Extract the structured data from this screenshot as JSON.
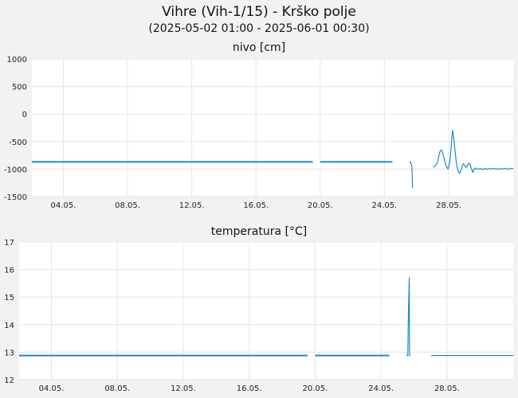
{
  "header": {
    "title": "Vihre (Vih-1/15) - Krško polje",
    "subtitle": "(2025-05-02 01:00 - 2025-06-01 00:30)"
  },
  "colors": {
    "line": "#1f88c9",
    "grid": "#e6e6e6",
    "background": "#f2f2f2",
    "plot_bg": "#ffffff"
  },
  "chart_data": [
    {
      "type": "line",
      "title": "nivo [cm]",
      "xlim": [
        "2025-05-02 01:00",
        "2025-06-01 00:30"
      ],
      "ylim": [
        -1500,
        1000
      ],
      "y_ticks": [
        1000,
        500,
        0,
        -500,
        -1000,
        -1500
      ],
      "x_ticks": [
        "04.05.",
        "08.05.",
        "12.05.",
        "16.05.",
        "20.05.",
        "24.05.",
        "28.05."
      ],
      "x_tick_dates": [
        "2025-05-04",
        "2025-05-08",
        "2025-05-12",
        "2025-05-16",
        "2025-05-20",
        "2025-05-24",
        "2025-05-28"
      ],
      "grid": true,
      "segments": [
        [
          [
            "2025-05-02 01:00",
            -870
          ],
          [
            "2025-05-19 13:00",
            -870
          ]
        ],
        [
          [
            "2025-05-20 00:00",
            -870
          ],
          [
            "2025-05-24 12:00",
            -870
          ]
        ],
        [
          [
            "2025-05-25 13:00",
            -870
          ],
          [
            "2025-05-25 15:00",
            -870
          ],
          [
            "2025-05-25 17:00",
            -950
          ],
          [
            "2025-05-25 17:30",
            -1080
          ],
          [
            "2025-05-25 18:00",
            -1340
          ]
        ],
        [
          [
            "2025-05-27 01:00",
            -970
          ],
          [
            "2025-05-27 04:00",
            -940
          ],
          [
            "2025-05-27 07:00",
            -890
          ],
          [
            "2025-05-27 09:00",
            -780
          ],
          [
            "2025-05-27 11:00",
            -680
          ],
          [
            "2025-05-27 13:00",
            -650
          ],
          [
            "2025-05-27 15:00",
            -700
          ],
          [
            "2025-05-27 17:00",
            -790
          ],
          [
            "2025-05-27 19:00",
            -900
          ],
          [
            "2025-05-27 21:00",
            -960
          ],
          [
            "2025-05-27 23:00",
            -1000
          ],
          [
            "2025-05-28 00:00",
            -960
          ],
          [
            "2025-05-28 01:00",
            -920
          ],
          [
            "2025-05-28 02:00",
            -820
          ],
          [
            "2025-05-28 03:00",
            -700
          ],
          [
            "2025-05-28 04:00",
            -560
          ],
          [
            "2025-05-28 05:00",
            -400
          ],
          [
            "2025-05-28 06:00",
            -300
          ],
          [
            "2025-05-28 07:00",
            -380
          ],
          [
            "2025-05-28 08:00",
            -480
          ],
          [
            "2025-05-28 09:00",
            -600
          ],
          [
            "2025-05-28 10:00",
            -720
          ],
          [
            "2025-05-28 11:00",
            -830
          ],
          [
            "2025-05-28 12:00",
            -930
          ],
          [
            "2025-05-28 14:00",
            -1020
          ],
          [
            "2025-05-28 16:00",
            -1080
          ],
          [
            "2025-05-28 18:00",
            -1040
          ],
          [
            "2025-05-28 20:00",
            -950
          ],
          [
            "2025-05-28 22:00",
            -900
          ],
          [
            "2025-05-29 00:00",
            -930
          ],
          [
            "2025-05-29 02:00",
            -970
          ],
          [
            "2025-05-29 04:00",
            -940
          ],
          [
            "2025-05-29 06:00",
            -890
          ],
          [
            "2025-05-29 08:00",
            -920
          ],
          [
            "2025-05-29 10:00",
            -990
          ],
          [
            "2025-05-29 12:00",
            -1060
          ],
          [
            "2025-05-29 14:00",
            -1000
          ],
          [
            "2025-05-29 16:00",
            -980
          ],
          [
            "2025-05-29 18:00",
            -1000
          ],
          [
            "2025-05-29 20:00",
            -1000
          ],
          [
            "2025-05-29 22:00",
            -1000
          ],
          [
            "2025-05-30 00:00",
            -990
          ],
          [
            "2025-05-30 03:00",
            -1010
          ],
          [
            "2025-05-30 06:00",
            -990
          ],
          [
            "2025-05-30 09:00",
            -1005
          ],
          [
            "2025-05-30 12:00",
            -990
          ],
          [
            "2025-05-30 15:00",
            -1000
          ],
          [
            "2025-05-30 18:00",
            -985
          ],
          [
            "2025-05-30 21:00",
            -1000
          ],
          [
            "2025-05-31 00:00",
            -995
          ],
          [
            "2025-05-31 03:00",
            -1005
          ],
          [
            "2025-05-31 06:00",
            -990
          ],
          [
            "2025-05-31 09:00",
            -1000
          ],
          [
            "2025-05-31 12:00",
            -985
          ],
          [
            "2025-05-31 15:00",
            -1000
          ],
          [
            "2025-05-31 18:00",
            -995
          ],
          [
            "2025-05-31 21:00",
            -990
          ],
          [
            "2025-06-01 00:30",
            -990
          ]
        ]
      ]
    },
    {
      "type": "line",
      "title": "temperatura [°C]",
      "xlim": [
        "2025-05-02 01:00",
        "2025-06-01 00:30"
      ],
      "ylim": [
        12,
        17
      ],
      "y_ticks": [
        17,
        16,
        15,
        14,
        13,
        12
      ],
      "x_ticks": [
        "04.05.",
        "08.05.",
        "12.05.",
        "16.05.",
        "20.05.",
        "24.05.",
        "28.05."
      ],
      "x_tick_dates": [
        "2025-05-04",
        "2025-05-08",
        "2025-05-12",
        "2025-05-16",
        "2025-05-20",
        "2025-05-24",
        "2025-05-28"
      ],
      "grid": true,
      "segments": [
        [
          [
            "2025-05-02 01:00",
            12.88
          ],
          [
            "2025-05-19 13:00",
            12.88
          ]
        ],
        [
          [
            "2025-05-20 00:00",
            12.88
          ],
          [
            "2025-05-24 12:00",
            12.88
          ]
        ],
        [
          [
            "2025-05-25 13:00",
            12.88
          ],
          [
            "2025-05-25 15:00",
            12.88
          ],
          [
            "2025-05-25 16:00",
            14.6
          ],
          [
            "2025-05-25 16:30",
            15.0
          ],
          [
            "2025-05-25 17:00",
            15.7
          ],
          [
            "2025-05-25 17:30",
            12.88
          ],
          [
            "2025-05-25 19:00",
            12.88
          ]
        ],
        [
          [
            "2025-05-27 01:00",
            12.88
          ],
          [
            "2025-06-01 00:30",
            12.88
          ]
        ]
      ]
    }
  ]
}
